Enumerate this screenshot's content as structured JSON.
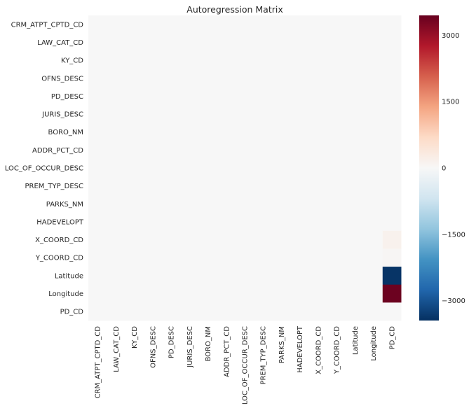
{
  "chart_data": {
    "type": "heatmap",
    "title": "Autoregression Matrix",
    "xlabel": "",
    "ylabel": "",
    "row_labels": [
      "CRM_ATPT_CPTD_CD",
      "LAW_CAT_CD",
      "KY_CD",
      "OFNS_DESC",
      "PD_DESC",
      "JURIS_DESC",
      "BORO_NM",
      "ADDR_PCT_CD",
      "LOC_OF_OCCUR_DESC",
      "PREM_TYP_DESC",
      "PARKS_NM",
      "HADEVELOPT",
      "X_COORD_CD",
      "Y_COORD_CD",
      "Latitude",
      "Longitude",
      "PD_CD"
    ],
    "col_labels": [
      "CRM_ATPT_CPTD_CD",
      "LAW_CAT_CD",
      "KY_CD",
      "OFNS_DESC",
      "PD_DESC",
      "JURIS_DESC",
      "BORO_NM",
      "ADDR_PCT_CD",
      "LOC_OF_OCCUR_DESC",
      "PREM_TYP_DESC",
      "PARKS_NM",
      "HADEVELOPT",
      "X_COORD_CD",
      "Y_COORD_CD",
      "Latitude",
      "Longitude",
      "PD_CD"
    ],
    "values": [
      [
        0,
        0,
        0,
        0,
        0,
        0,
        0,
        0,
        0,
        0,
        0,
        0,
        0,
        0,
        0,
        0,
        0
      ],
      [
        0,
        0,
        0,
        0,
        0,
        0,
        0,
        0,
        0,
        0,
        0,
        0,
        0,
        0,
        0,
        0,
        0
      ],
      [
        0,
        0,
        0,
        0,
        0,
        0,
        0,
        0,
        0,
        0,
        0,
        0,
        0,
        0,
        0,
        0,
        0
      ],
      [
        0,
        0,
        0,
        0,
        0,
        0,
        0,
        0,
        0,
        0,
        0,
        0,
        0,
        0,
        0,
        0,
        0
      ],
      [
        0,
        0,
        0,
        0,
        0,
        0,
        0,
        0,
        0,
        0,
        0,
        0,
        0,
        0,
        0,
        0,
        0
      ],
      [
        0,
        0,
        0,
        0,
        0,
        0,
        0,
        0,
        0,
        0,
        0,
        0,
        0,
        0,
        0,
        0,
        0
      ],
      [
        0,
        0,
        0,
        0,
        0,
        0,
        0,
        0,
        0,
        0,
        0,
        0,
        0,
        0,
        0,
        0,
        0
      ],
      [
        0,
        0,
        0,
        0,
        0,
        0,
        0,
        0,
        0,
        0,
        0,
        0,
        0,
        0,
        0,
        0,
        0
      ],
      [
        0,
        0,
        0,
        0,
        0,
        0,
        0,
        0,
        0,
        0,
        0,
        0,
        0,
        0,
        0,
        0,
        0
      ],
      [
        0,
        0,
        0,
        0,
        0,
        0,
        0,
        0,
        0,
        0,
        0,
        0,
        0,
        0,
        0,
        0,
        0
      ],
      [
        0,
        0,
        0,
        0,
        0,
        0,
        0,
        0,
        0,
        0,
        0,
        0,
        0,
        0,
        0,
        0,
        0
      ],
      [
        0,
        0,
        0,
        0,
        0,
        0,
        0,
        0,
        0,
        0,
        0,
        0,
        0,
        0,
        0,
        0,
        0
      ],
      [
        0,
        0,
        0,
        0,
        0,
        0,
        0,
        0,
        0,
        0,
        0,
        0,
        0,
        0,
        0,
        0,
        150
      ],
      [
        0,
        0,
        0,
        0,
        0,
        0,
        0,
        0,
        0,
        0,
        0,
        0,
        0,
        0,
        0,
        0,
        50
      ],
      [
        0,
        0,
        0,
        0,
        0,
        0,
        0,
        0,
        0,
        0,
        0,
        0,
        0,
        0,
        0,
        0,
        -3400
      ],
      [
        0,
        0,
        0,
        0,
        0,
        0,
        0,
        0,
        0,
        0,
        0,
        0,
        0,
        0,
        0,
        0,
        3400
      ],
      [
        0,
        0,
        0,
        0,
        0,
        0,
        0,
        0,
        0,
        0,
        0,
        0,
        0,
        0,
        0,
        0,
        0
      ]
    ],
    "colorbar": {
      "vmin": -3450,
      "vmax": 3450,
      "ticks": [
        3000,
        1500,
        0,
        -1500,
        -3000
      ],
      "tick_labels": [
        "3000",
        "1500",
        "0",
        "−1500",
        "−3000"
      ],
      "colormap": "RdBu_r"
    },
    "grid": false,
    "legend": "colorbar-right"
  }
}
